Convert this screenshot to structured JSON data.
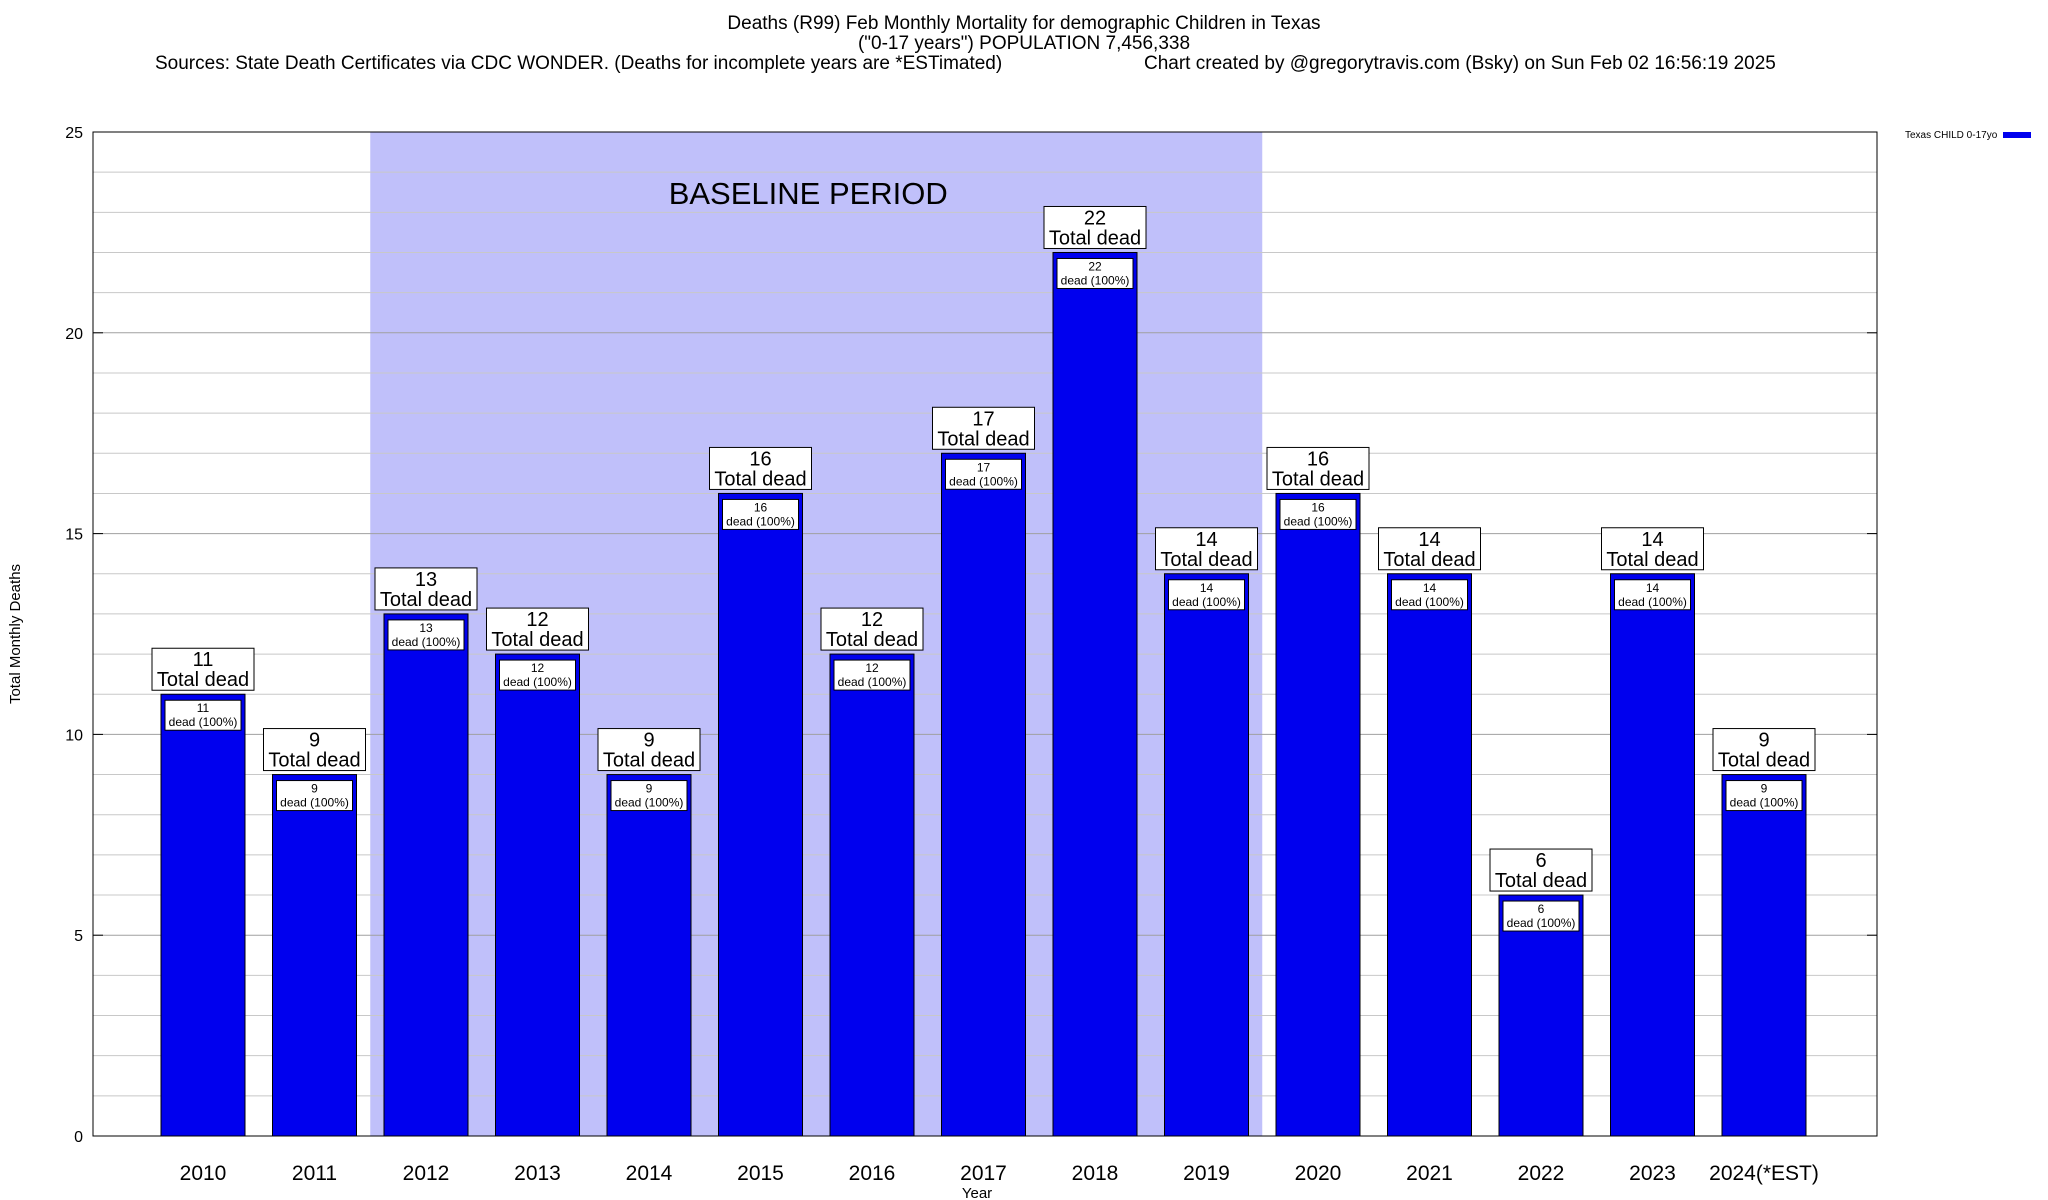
{
  "header": {
    "line1": "Deaths (R99) Feb Monthly Mortality for demographic Children in Texas",
    "line2": "(\"0-17 years\") POPULATION 7,456,338",
    "sources": "Sources: State Death Certificates via CDC WONDER. (Deaths for incomplete years are *ESTimated)",
    "credit": "Chart created by @gregorytravis.com (Bsky) on Sun Feb 02 16:56:19 2025"
  },
  "legend": {
    "label": "Texas CHILD 0-17yo",
    "color": "#0000ee"
  },
  "chart_data": {
    "type": "bar",
    "title": "Deaths (R99) Feb Monthly Mortality for demographic Children in Texas",
    "xlabel": "Year",
    "ylabel": "Total Monthly Deaths",
    "ylim": [
      0,
      25
    ],
    "yticks": [
      0,
      5,
      10,
      15,
      20,
      25
    ],
    "grid": true,
    "legend_position": "top-right",
    "categories": [
      "2010",
      "2011",
      "2012",
      "2013",
      "2014",
      "2015",
      "2016",
      "2017",
      "2018",
      "2019",
      "2020",
      "2021",
      "2022",
      "2023",
      "2024(*EST)"
    ],
    "series": [
      {
        "name": "Texas CHILD 0-17yo",
        "values": [
          11,
          9,
          13,
          12,
          9,
          16,
          12,
          17,
          22,
          14,
          16,
          14,
          6,
          14,
          9
        ],
        "color": "#0000ee"
      }
    ],
    "annotation_total_suffix": "Total dead",
    "annotation_inner_suffix": "dead (100%)",
    "baseline_region": {
      "label": "BASELINE PERIOD",
      "from": "2012",
      "to": "2019",
      "color": "#c0c0fa"
    }
  }
}
